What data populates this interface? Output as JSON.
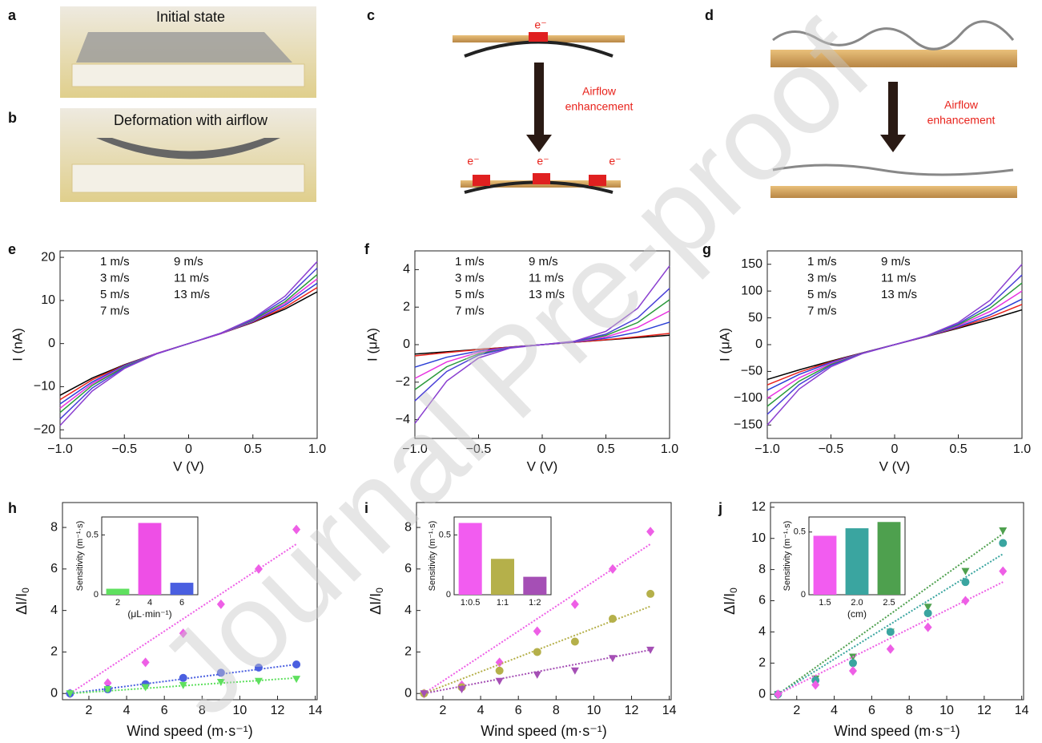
{
  "watermark": "Journal Pre-proof",
  "illustrations": [
    {
      "letter": "a",
      "caption": "Initial state"
    },
    {
      "letter": "b",
      "caption": "Deformation with airflow"
    },
    {
      "letter": "c",
      "electrons": [
        "e⁻",
        "e⁻",
        "e⁻",
        "e⁻"
      ],
      "arrow_label": [
        "Airflow",
        "enhancement"
      ]
    },
    {
      "letter": "d",
      "arrow_label": [
        "Airflow",
        "enhancement"
      ]
    }
  ],
  "chart_data": [
    {
      "type": "line",
      "letter": "e",
      "x_label": "V (V)",
      "y_label": "I (nA)",
      "legend": "upper left",
      "x": [
        -1,
        -0.75,
        -0.5,
        -0.25,
        0,
        0.25,
        0.5,
        0.75,
        1
      ],
      "xlim": [
        -1,
        1
      ],
      "xticks": [
        {
          "value": -1,
          "label": "−1.0"
        },
        {
          "value": -0.5,
          "label": "−0.5"
        },
        0,
        0.5,
        {
          "value": 1,
          "label": "1.0"
        }
      ],
      "ylim": [
        -22,
        21.5
      ],
      "yticks": [
        {
          "value": -20,
          "label": "−20"
        },
        {
          "value": -10,
          "label": "−10"
        },
        0,
        10,
        20
      ],
      "series": [
        {
          "name": "1 m/s",
          "color": "#000000",
          "values": [
            -12,
            -8.0,
            -4.9,
            -2.3,
            0,
            2.3,
            4.9,
            8.0,
            12
          ]
        },
        {
          "name": "3 m/s",
          "color": "#e8231c",
          "values": [
            -13,
            -8.4,
            -5.0,
            -2.3,
            0,
            2.3,
            5.0,
            8.4,
            13
          ]
        },
        {
          "name": "5 m/s",
          "color": "#2b3fd6",
          "values": [
            -14,
            -8.9,
            -5.1,
            -2.3,
            0,
            2.3,
            5.1,
            8.9,
            14
          ]
        },
        {
          "name": "7 m/s",
          "color": "#e832e0",
          "values": [
            -15,
            -9.3,
            -5.3,
            -2.3,
            0,
            2.3,
            5.3,
            9.3,
            15
          ]
        },
        {
          "name": "9 m/s",
          "color": "#2a9a3a",
          "values": [
            -16,
            -9.7,
            -5.4,
            -2.4,
            0,
            2.4,
            5.4,
            9.7,
            16
          ]
        },
        {
          "name": "11 m/s",
          "color": "#4a3fd8",
          "values": [
            -17.5,
            -10.3,
            -5.6,
            -2.4,
            0,
            2.4,
            5.6,
            10.3,
            17.5
          ]
        },
        {
          "name": "13 m/s",
          "color": "#8a3fd0",
          "values": [
            -19,
            -11.0,
            -5.8,
            -2.4,
            0,
            2.4,
            5.8,
            11.0,
            19
          ]
        }
      ]
    },
    {
      "type": "line",
      "letter": "f",
      "x_label": "V (V)",
      "y_label": "I (μA)",
      "legend": "upper left",
      "x": [
        -1,
        -0.75,
        -0.5,
        -0.25,
        0,
        0.25,
        0.5,
        0.75,
        1
      ],
      "xlim": [
        -1,
        1
      ],
      "xticks": [
        {
          "value": -1,
          "label": "−1.0"
        },
        {
          "value": -0.5,
          "label": "−0.5"
        },
        0,
        0.5,
        {
          "value": 1,
          "label": "1.0"
        }
      ],
      "ylim": [
        -5,
        5
      ],
      "yticks": [
        {
          "value": -4,
          "label": "−4"
        },
        {
          "value": -2,
          "label": "−2"
        },
        0,
        2,
        4
      ],
      "series": [
        {
          "name": "1 m/s",
          "color": "#000000",
          "values": [
            -0.5,
            -0.38,
            -0.25,
            -0.13,
            0,
            0.13,
            0.25,
            0.38,
            0.5
          ]
        },
        {
          "name": "3 m/s",
          "color": "#e8231c",
          "values": [
            -0.6,
            -0.42,
            -0.26,
            -0.13,
            0,
            0.13,
            0.26,
            0.42,
            0.6
          ]
        },
        {
          "name": "5 m/s",
          "color": "#2b3fd6",
          "values": [
            -1.2,
            -0.67,
            -0.34,
            -0.14,
            0,
            0.14,
            0.34,
            0.67,
            1.2
          ]
        },
        {
          "name": "7 m/s",
          "color": "#e832e0",
          "values": [
            -1.8,
            -0.92,
            -0.41,
            -0.15,
            0,
            0.15,
            0.41,
            0.92,
            1.8
          ]
        },
        {
          "name": "9 m/s",
          "color": "#2a9a3a",
          "values": [
            -2.4,
            -1.18,
            -0.49,
            -0.16,
            0,
            0.16,
            0.49,
            1.18,
            2.4
          ]
        },
        {
          "name": "11 m/s",
          "color": "#4a3fd8",
          "values": [
            -3.0,
            -1.43,
            -0.56,
            -0.16,
            0,
            0.16,
            0.56,
            1.43,
            3.0
          ]
        },
        {
          "name": "13 m/s",
          "color": "#8a3fd0",
          "values": [
            -4.2,
            -1.94,
            -0.71,
            -0.18,
            0,
            0.18,
            0.71,
            1.94,
            4.2
          ]
        }
      ]
    },
    {
      "type": "line",
      "letter": "g",
      "x_label": "V (V)",
      "y_label": "I (μA)",
      "legend": "upper left",
      "x": [
        -1,
        -0.75,
        -0.5,
        -0.25,
        0,
        0.25,
        0.5,
        0.75,
        1
      ],
      "xlim": [
        -1,
        1
      ],
      "xticks": [
        {
          "value": -1,
          "label": "−1.0"
        },
        {
          "value": -0.5,
          "label": "−0.5"
        },
        0,
        0.5,
        {
          "value": 1,
          "label": "1.0"
        }
      ],
      "ylim": [
        -175,
        175
      ],
      "yticks": [
        {
          "value": -150,
          "label": "−150"
        },
        {
          "value": -100,
          "label": "−100"
        },
        {
          "value": -50,
          "label": "−50"
        },
        0,
        50,
        100,
        150
      ],
      "series": [
        {
          "name": "1 m/s",
          "color": "#000000",
          "values": [
            -65,
            -47.1,
            -30.6,
            -15.1,
            0,
            15.1,
            30.6,
            47.1,
            65
          ]
        },
        {
          "name": "3 m/s",
          "color": "#e8231c",
          "values": [
            -75,
            -51.3,
            -31.9,
            -15.2,
            0,
            15.2,
            31.9,
            51.3,
            75
          ]
        },
        {
          "name": "5 m/s",
          "color": "#2b3fd6",
          "values": [
            -85,
            -55.6,
            -33.1,
            -15.4,
            0,
            15.4,
            33.1,
            55.6,
            85
          ]
        },
        {
          "name": "7 m/s",
          "color": "#e832e0",
          "values": [
            -100,
            -61.9,
            -35,
            -15.6,
            0,
            15.6,
            35,
            61.9,
            100
          ]
        },
        {
          "name": "9 m/s",
          "color": "#2a9a3a",
          "values": [
            -115,
            -68.2,
            -36.9,
            -15.9,
            0,
            15.9,
            36.9,
            68.2,
            115
          ]
        },
        {
          "name": "11 m/s",
          "color": "#4a3fd8",
          "values": [
            -130,
            -74.5,
            -38.8,
            -16.1,
            0,
            16.1,
            38.8,
            74.5,
            130
          ]
        },
        {
          "name": "13 m/s",
          "color": "#8a3fd0",
          "values": [
            -150,
            -82.9,
            -41.3,
            -16.4,
            0,
            16.4,
            41.3,
            82.9,
            150
          ]
        }
      ]
    },
    {
      "type": "scatter",
      "letter": "h",
      "x_label": "Wind speed (m·s⁻¹)",
      "y_label": "ΔI/I",
      "y_label_sub": "0",
      "x": [
        1,
        3,
        5,
        7,
        9,
        11,
        13
      ],
      "xlim": [
        0.6,
        14.1
      ],
      "xticks": [
        2,
        4,
        6,
        8,
        10,
        12,
        14
      ],
      "ylim": [
        -0.3,
        9.2
      ],
      "yticks": [
        0,
        2,
        4,
        6,
        8
      ],
      "series": [
        {
          "color": "#ee5fe6",
          "marker": "diamond",
          "values": [
            0,
            0.5,
            1.5,
            2.9,
            4.3,
            6.0,
            7.9
          ],
          "fit": {
            "x": [
              1,
              13
            ],
            "values": [
              0,
              7.2
            ]
          }
        },
        {
          "color": "#4a5fe0",
          "marker": "circle",
          "values": [
            0,
            0.2,
            0.45,
            0.75,
            1.0,
            1.25,
            1.4
          ],
          "fit": {
            "x": [
              1,
              13
            ],
            "values": [
              0,
              1.4
            ]
          }
        },
        {
          "color": "#5fe05f",
          "marker": "triangle",
          "values": [
            0,
            0.2,
            0.3,
            0.4,
            0.55,
            0.6,
            0.7
          ],
          "fit": {
            "x": [
              1,
              13
            ],
            "values": [
              0,
              0.75
            ]
          }
        }
      ],
      "inset": {
        "type": "bar",
        "y_label": "Sensitivity (m⁻¹·s)",
        "x_label": "(μL·min⁻¹)",
        "categories": [
          "2",
          "4",
          "6"
        ],
        "values": [
          0.05,
          0.6,
          0.1
        ],
        "colors": [
          "#5fe05f",
          "#ee4fe6",
          "#4a5fe0"
        ],
        "ylim": [
          0,
          0.65
        ],
        "yticks": [
          0,
          0.5
        ]
      }
    },
    {
      "type": "scatter",
      "letter": "i",
      "x_label": "Wind speed (m·s⁻¹)",
      "y_label": "ΔI/I",
      "y_label_sub": "0",
      "x": [
        1,
        3,
        5,
        7,
        9,
        11,
        13
      ],
      "xlim": [
        0.6,
        14.1
      ],
      "xticks": [
        2,
        4,
        6,
        8,
        10,
        12,
        14
      ],
      "ylim": [
        -0.3,
        9.2
      ],
      "yticks": [
        0,
        2,
        4,
        6,
        8
      ],
      "series": [
        {
          "color": "#ee5fe6",
          "marker": "diamond",
          "values": [
            0,
            0.4,
            1.5,
            3.0,
            4.3,
            6.0,
            7.8
          ],
          "fit": {
            "x": [
              1,
              13
            ],
            "values": [
              0,
              7.2
            ]
          }
        },
        {
          "color": "#b5b04a",
          "marker": "circle",
          "values": [
            0,
            0.3,
            1.1,
            2.0,
            2.5,
            3.6,
            4.8
          ],
          "fit": {
            "x": [
              1,
              13
            ],
            "values": [
              0,
              4.2
            ]
          }
        },
        {
          "color": "#a54fb5",
          "marker": "triangle",
          "values": [
            0,
            0.2,
            0.6,
            0.9,
            1.1,
            1.7,
            2.1
          ],
          "fit": {
            "x": [
              1,
              13
            ],
            "values": [
              0,
              2.1
            ]
          }
        }
      ],
      "inset": {
        "type": "bar",
        "y_label": "Sensitivity (m⁻¹·s)",
        "categories": [
          "1:0.5",
          "1:1",
          "1:2"
        ],
        "values": [
          0.6,
          0.3,
          0.15
        ],
        "colors": [
          "#f25cf0",
          "#b5b04a",
          "#a54fb5"
        ],
        "ylim": [
          0,
          0.65
        ],
        "yticks": [
          0,
          0.5
        ]
      }
    },
    {
      "type": "scatter",
      "letter": "j",
      "x_label": "Wind speed (m·s⁻¹)",
      "y_label": "ΔI/I",
      "y_label_sub": "0",
      "x": [
        1,
        3,
        5,
        7,
        9,
        11,
        13
      ],
      "xlim": [
        0.6,
        14.1
      ],
      "xticks": [
        2,
        4,
        6,
        8,
        10,
        12,
        14
      ],
      "ylim": [
        -0.35,
        12.3
      ],
      "yticks": [
        0,
        2,
        4,
        6,
        8,
        10,
        12
      ],
      "series": [
        {
          "color": "#4ea04e",
          "marker": "triangle",
          "values": [
            0,
            1.0,
            2.4,
            4.0,
            5.6,
            7.9,
            10.5
          ],
          "fit": {
            "x": [
              1,
              13
            ],
            "values": [
              0,
              10.3
            ]
          }
        },
        {
          "color": "#3aa5a0",
          "marker": "circle",
          "values": [
            0,
            0.9,
            2.0,
            4.0,
            5.2,
            7.2,
            9.7
          ],
          "fit": {
            "x": [
              1,
              13
            ],
            "values": [
              0,
              9.0
            ]
          }
        },
        {
          "color": "#ee5fe6",
          "marker": "diamond",
          "values": [
            0,
            0.6,
            1.5,
            2.9,
            4.3,
            6.0,
            7.9
          ],
          "fit": {
            "x": [
              1,
              13
            ],
            "values": [
              0,
              7.2
            ]
          }
        }
      ],
      "inset": {
        "type": "bar",
        "y_label": "Sensitivity (m⁻¹·s)",
        "x_label": "(cm)",
        "categories": [
          "1.5",
          "2.0",
          "2.5"
        ],
        "values": [
          0.47,
          0.53,
          0.58
        ],
        "colors": [
          "#f25cf0",
          "#3aa5a0",
          "#4ea04e"
        ],
        "ylim": [
          0,
          0.62
        ],
        "yticks": [
          0,
          0.5
        ]
      }
    }
  ]
}
